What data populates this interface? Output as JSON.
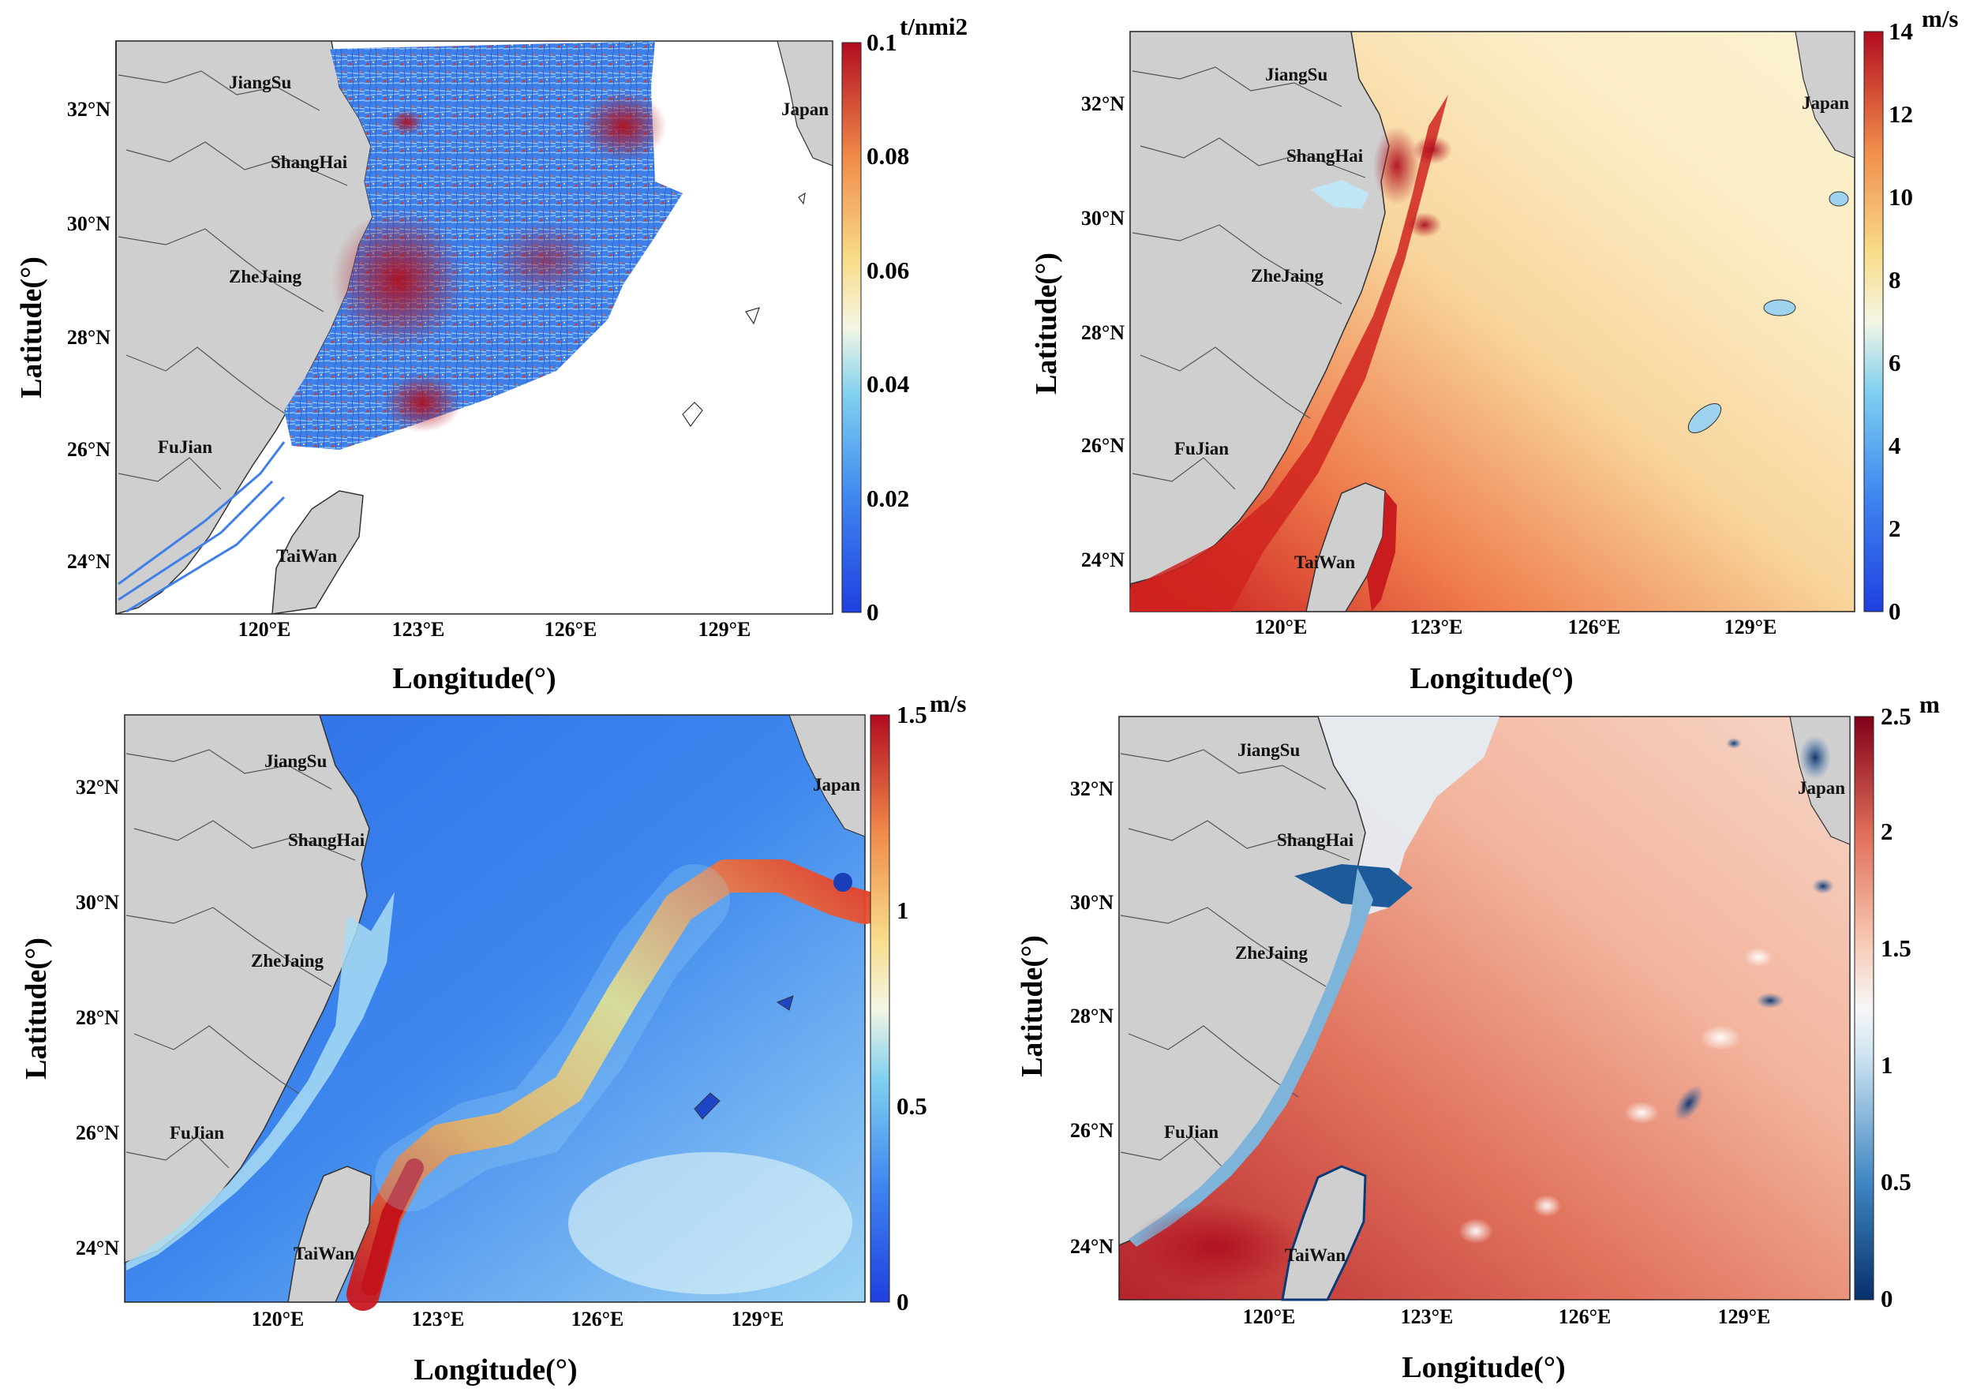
{
  "axis": {
    "xlabel": "Longitude(°)",
    "ylabel": "Latitude(°)",
    "lon_ticks": [
      "120°E",
      "123°E",
      "126°E",
      "129°E"
    ],
    "lat_ticks": [
      "24°N",
      "26°N",
      "28°N",
      "30°N",
      "32°N"
    ]
  },
  "regions": {
    "jiangsu": "JiangSu",
    "shanghai": "ShangHai",
    "zhejiang": "ZheJaing",
    "fujian": "FuJian",
    "taiwan": "TaiWan",
    "japan": "Japan"
  },
  "panels": [
    {
      "id": "fuel-density",
      "unit": "t/nmi2",
      "colorbar_ticks": [
        "0",
        "0.02",
        "0.04",
        "0.06",
        "0.08",
        "0.1"
      ],
      "range": [
        0,
        0.1
      ],
      "palette": "jet-like"
    },
    {
      "id": "wind-speed",
      "unit": "m/s",
      "colorbar_ticks": [
        "0",
        "2",
        "4",
        "6",
        "8",
        "10",
        "12",
        "14"
      ],
      "range": [
        0,
        14
      ],
      "palette": "blue-yellow-red"
    },
    {
      "id": "current-speed",
      "unit": "m/s",
      "colorbar_ticks": [
        "0",
        "0.5",
        "1",
        "1.5"
      ],
      "range": [
        0,
        1.5
      ],
      "palette": "jet-like"
    },
    {
      "id": "wave-height",
      "unit": "m",
      "colorbar_ticks": [
        "0",
        "0.5",
        "1",
        "1.5",
        "2",
        "2.5"
      ],
      "range": [
        0,
        2.5
      ],
      "palette": "blue-white-red"
    }
  ],
  "colors": {
    "land": "#cfcfcf",
    "coast": "#333333",
    "province_border": "#555555"
  }
}
